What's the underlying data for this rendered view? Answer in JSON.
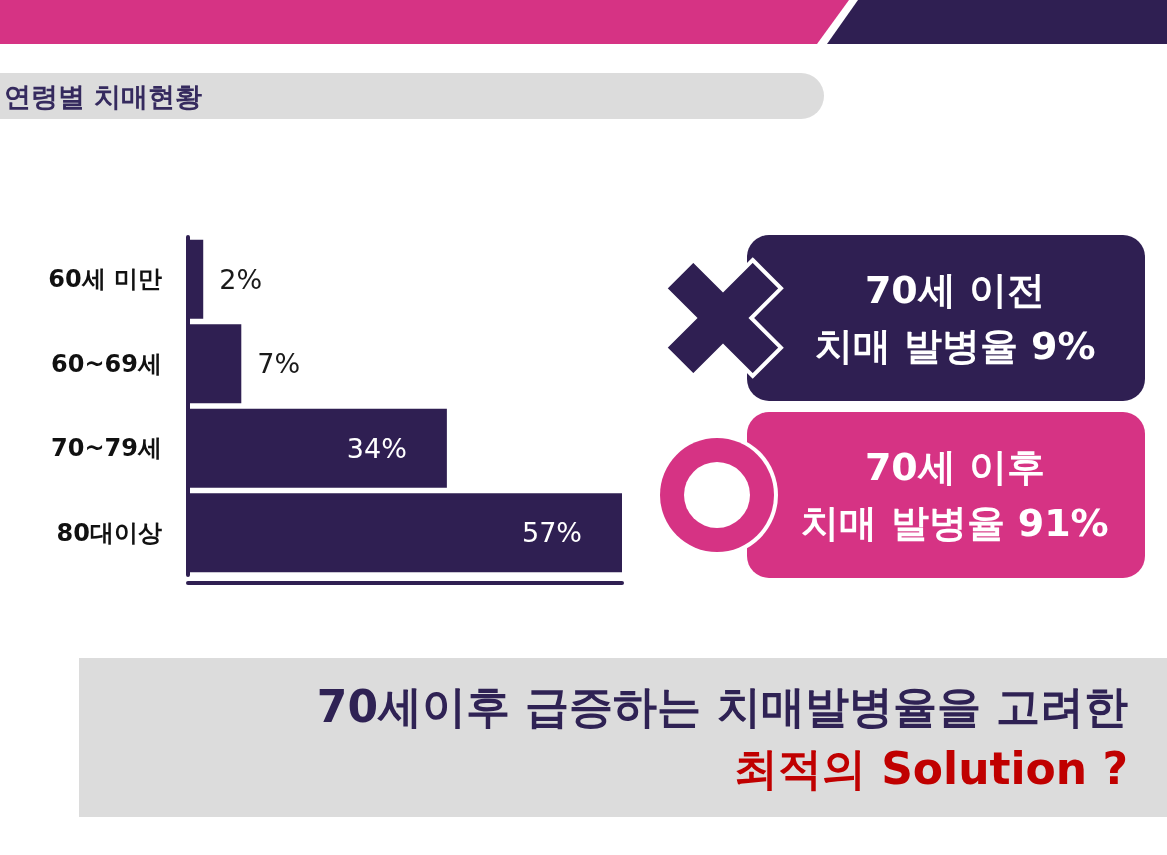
{
  "chart_data": {
    "type": "bar",
    "title": "연령별 치매현황",
    "orientation": "horizontal",
    "categories": [
      "60세 미만",
      "60~69세",
      "70~79세",
      "80대이상"
    ],
    "values": [
      2,
      7,
      34,
      57
    ],
    "value_labels": [
      "2%",
      "7%",
      "34%",
      "57%"
    ],
    "color": "#2f1f52",
    "tick_labels": "y",
    "annotations": [
      "70세 이전\n치매 발병율 9%",
      "70세 이후\n치매 발병율 91%",
      "70세이후 급증하는 치매발병율을 고려한",
      "최적의 Solution ?"
    ]
  }
}
